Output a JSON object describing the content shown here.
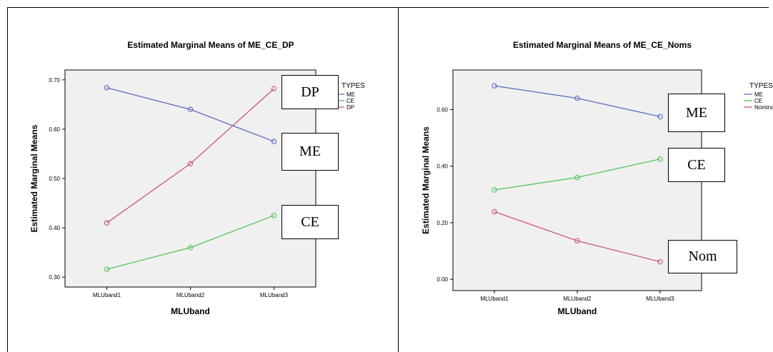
{
  "chart_data": [
    {
      "type": "line",
      "title": "Estimated Marginal Means of ME_CE_DP",
      "xlabel": "MLUband",
      "ylabel": "Estimated Marginal Means",
      "categories": [
        "MLUband1",
        "MLUband2",
        "MLUband3"
      ],
      "ylim": [
        0.28,
        0.72
      ],
      "yticks": [
        0.3,
        0.4,
        0.5,
        0.6,
        0.7
      ],
      "ytick_labels": [
        "0.30",
        "0.40",
        "0.50",
        "0.60",
        "0.70"
      ],
      "grid": false,
      "legend_title": "TYPES",
      "legend_position": "right",
      "series": [
        {
          "name": "ME",
          "color": "#5b6fc0",
          "values": [
            0.684,
            0.64,
            0.575
          ]
        },
        {
          "name": "CE",
          "color": "#55c35b",
          "values": [
            0.316,
            0.36,
            0.425
          ]
        },
        {
          "name": "DP",
          "color": "#c95482",
          "values": [
            0.41,
            0.53,
            0.682
          ]
        }
      ],
      "annotations": [
        "DP",
        "ME",
        "CE"
      ]
    },
    {
      "type": "line",
      "title": "Estimated Marginal Means of ME_CE_Noms",
      "xlabel": "MLUband",
      "ylabel": "Estimated Marginal Means",
      "categories": [
        "MLUband1",
        "MLUband2",
        "MLUband3"
      ],
      "ylim": [
        -0.04,
        0.74
      ],
      "yticks": [
        0.0,
        0.2,
        0.4,
        0.6
      ],
      "ytick_labels": [
        "0.00",
        "0.20",
        "0.40",
        "0.60"
      ],
      "grid": false,
      "legend_title": "TYPES",
      "legend_position": "right",
      "series": [
        {
          "name": "ME",
          "color": "#5b6fc0",
          "values": [
            0.684,
            0.64,
            0.575
          ]
        },
        {
          "name": "CE",
          "color": "#55c35b",
          "values": [
            0.316,
            0.36,
            0.425
          ]
        },
        {
          "name": "Nominals",
          "color": "#c95482",
          "values": [
            0.239,
            0.136,
            0.062
          ]
        }
      ],
      "annotations": [
        "ME",
        "CE",
        "Nom"
      ]
    }
  ]
}
